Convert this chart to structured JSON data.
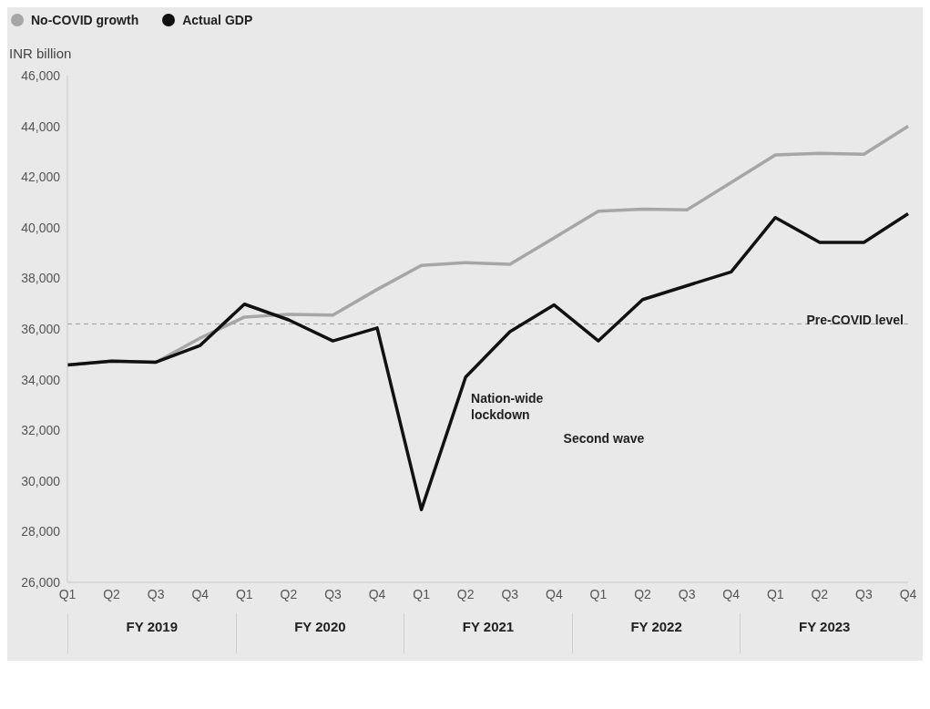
{
  "chart_data": {
    "type": "line",
    "ylabel": "INR billion",
    "categories": [
      "Q1",
      "Q2",
      "Q3",
      "Q4",
      "Q1",
      "Q2",
      "Q3",
      "Q4",
      "Q1",
      "Q2",
      "Q3",
      "Q4",
      "Q1",
      "Q2",
      "Q3",
      "Q4",
      "Q1",
      "Q2",
      "Q3",
      "Q4"
    ],
    "series": [
      {
        "name": "No-COVID growth",
        "color": "#a6a6a6",
        "values": [
          34580,
          34730,
          34690,
          35640,
          36470,
          36580,
          36550,
          37560,
          38510,
          38620,
          38550,
          39600,
          40650,
          40730,
          40700,
          41780,
          42870,
          42930,
          42900,
          44000
        ]
      },
      {
        "name": "Actual GDP",
        "color": "#111111",
        "values": [
          34580,
          34730,
          34690,
          35350,
          36980,
          36360,
          35530,
          36040,
          28870,
          34100,
          35890,
          36950,
          35530,
          37160,
          37710,
          38250,
          40400,
          39420,
          39420,
          40550
        ]
      }
    ],
    "ylim": [
      26000,
      46000
    ],
    "yticks": [
      {
        "value": 26000,
        "label": "26,000"
      },
      {
        "value": 28000,
        "label": "28,000"
      },
      {
        "value": 30000,
        "label": "30,000"
      },
      {
        "value": 32000,
        "label": "32,000"
      },
      {
        "value": 34000,
        "label": "34,000"
      },
      {
        "value": 36000,
        "label": "36,000"
      },
      {
        "value": 38000,
        "label": "38,000"
      },
      {
        "value": 40000,
        "label": "40,000"
      },
      {
        "value": 42000,
        "label": "42,000"
      },
      {
        "value": 44000,
        "label": "44,000"
      },
      {
        "value": 46000,
        "label": "46,000"
      }
    ],
    "ref_lines": [
      {
        "axis": "y",
        "value": 36200,
        "label": "Pre-COVID level",
        "color": "#999999",
        "line_style": "dashed"
      }
    ],
    "annotations": [
      "Nation-wide lockdown",
      "Second wave",
      "FY 2019",
      "FY 2020",
      "FY 2021",
      "FY 2022",
      "FY 2023"
    ],
    "legend": "top left",
    "marker": "none",
    "line_style": "solid"
  }
}
